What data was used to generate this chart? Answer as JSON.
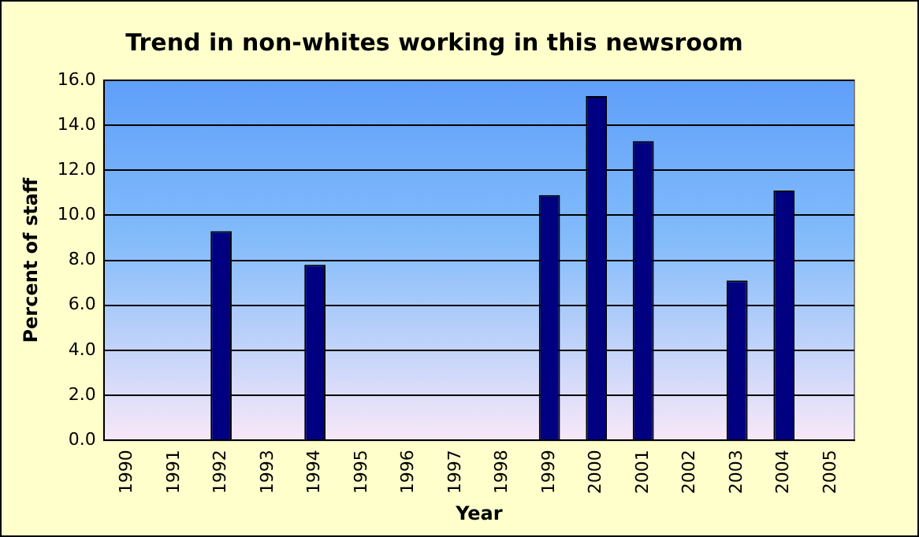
{
  "chart_data": {
    "type": "bar",
    "title": "Trend in non-whites working in this newsroom",
    "xlabel": "Year",
    "ylabel": "Percent of staff",
    "categories": [
      "1990",
      "1991",
      "1992",
      "1993",
      "1994",
      "1995",
      "1996",
      "1997",
      "1998",
      "1999",
      "2000",
      "2001",
      "2002",
      "2003",
      "2004",
      "2005"
    ],
    "values": [
      null,
      null,
      9.3,
      null,
      7.8,
      null,
      null,
      null,
      null,
      10.9,
      15.3,
      13.3,
      null,
      7.1,
      11.1,
      null
    ],
    "color": "#000080",
    "ylim": [
      0,
      16
    ],
    "yticks": [
      {
        "value": 0,
        "label": "0.0"
      },
      {
        "value": 2,
        "label": "2.0"
      },
      {
        "value": 4,
        "label": "4.0"
      },
      {
        "value": 6,
        "label": "6.0"
      },
      {
        "value": 8,
        "label": "8.0"
      },
      {
        "value": 10,
        "label": "10.0"
      },
      {
        "value": 12,
        "label": "12.0"
      },
      {
        "value": 14,
        "label": "14.0"
      },
      {
        "value": 16,
        "label": "16.0"
      }
    ],
    "grid": "y"
  }
}
